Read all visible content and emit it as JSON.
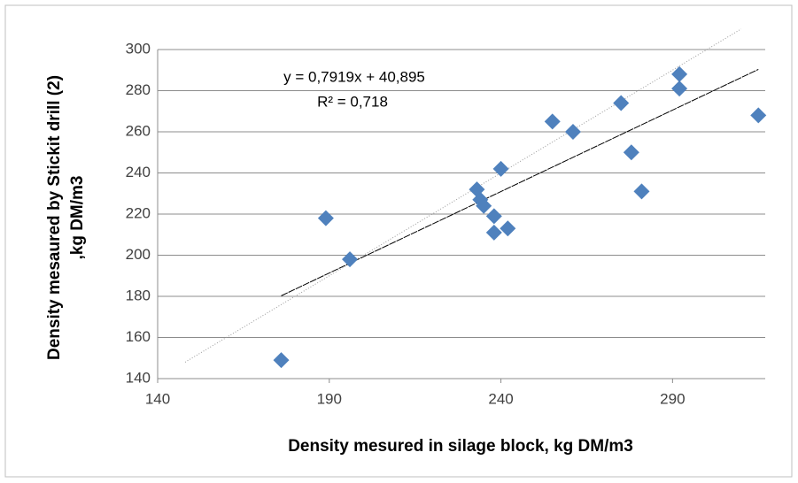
{
  "chart_data": {
    "type": "scatter",
    "x_label": "Density mesured  in silage block, kg DM/m3",
    "y_label": [
      "Density mesaured  by  Stickit drill (2)",
      ",kg DM/m3"
    ],
    "x": [
      176,
      189,
      196,
      233,
      234,
      235,
      238,
      238,
      240,
      242,
      255,
      261,
      275,
      278,
      281,
      292,
      292,
      315
    ],
    "series": [
      {
        "color": "#4f81bd",
        "values": [
          149,
          218,
          198,
          232,
          227,
          224,
          219,
          211,
          242,
          213,
          265,
          260,
          274,
          250,
          231,
          288,
          281,
          268
        ]
      }
    ],
    "xlim": [
      140,
      317
    ],
    "xticks": [
      140,
      190,
      240,
      290
    ],
    "ylim": [
      140,
      300
    ],
    "yticks": [
      140,
      160,
      180,
      200,
      220,
      240,
      260,
      280,
      300
    ],
    "grid": true,
    "trendline": {
      "slope": 0.7919,
      "intercept": 40.895,
      "color": "#000000",
      "equation": "y = 0,7919x + 40,895",
      "r2": 0.718,
      "r2_label": "R² = 0,718"
    },
    "reference_line": {
      "x": [
        148,
        310
      ],
      "y": [
        148,
        310
      ],
      "color": "#999999"
    }
  }
}
